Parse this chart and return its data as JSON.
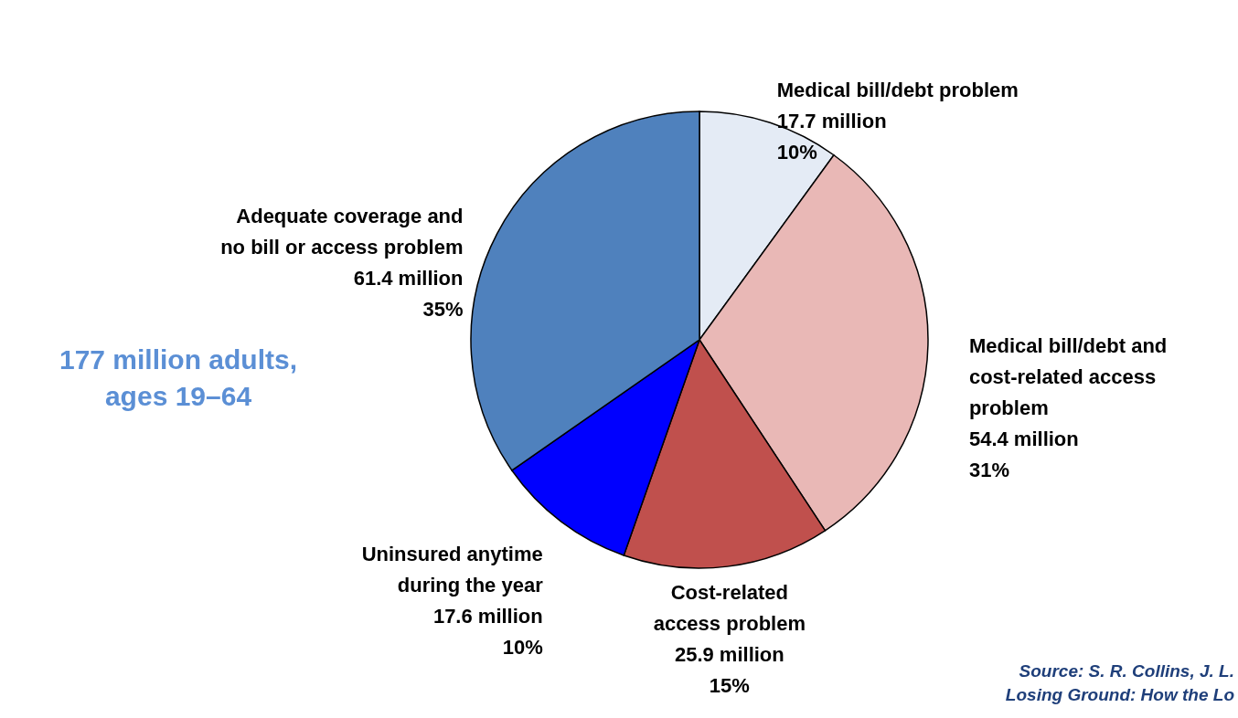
{
  "chart_data": {
    "type": "pie",
    "categories": [
      "Medical bill/debt problem",
      "Medical bill/debt and\ncost-related access\nproblem",
      "Cost-related\naccess problem",
      "Uninsured anytime\nduring the year",
      "Adequate coverage and\nno bill or access problem"
    ],
    "values": [
      17.7,
      54.4,
      25.9,
      17.6,
      61.4
    ],
    "value_labels": [
      "17.7 million",
      "54.4 million",
      "25.9 million",
      "17.6 million",
      "61.4 million"
    ],
    "colors": [
      "#e4ebf5",
      "#e9b8b6",
      "#c0504d",
      "#0000ff",
      "#4f81bd"
    ],
    "annotations": [
      "177 million adults,\nages 19–64",
      "Source: S. R. Collins, J. L.\nLosing Ground: How the Lo",
      "10%",
      "31%",
      "15%",
      "10%",
      "35%"
    ]
  }
}
